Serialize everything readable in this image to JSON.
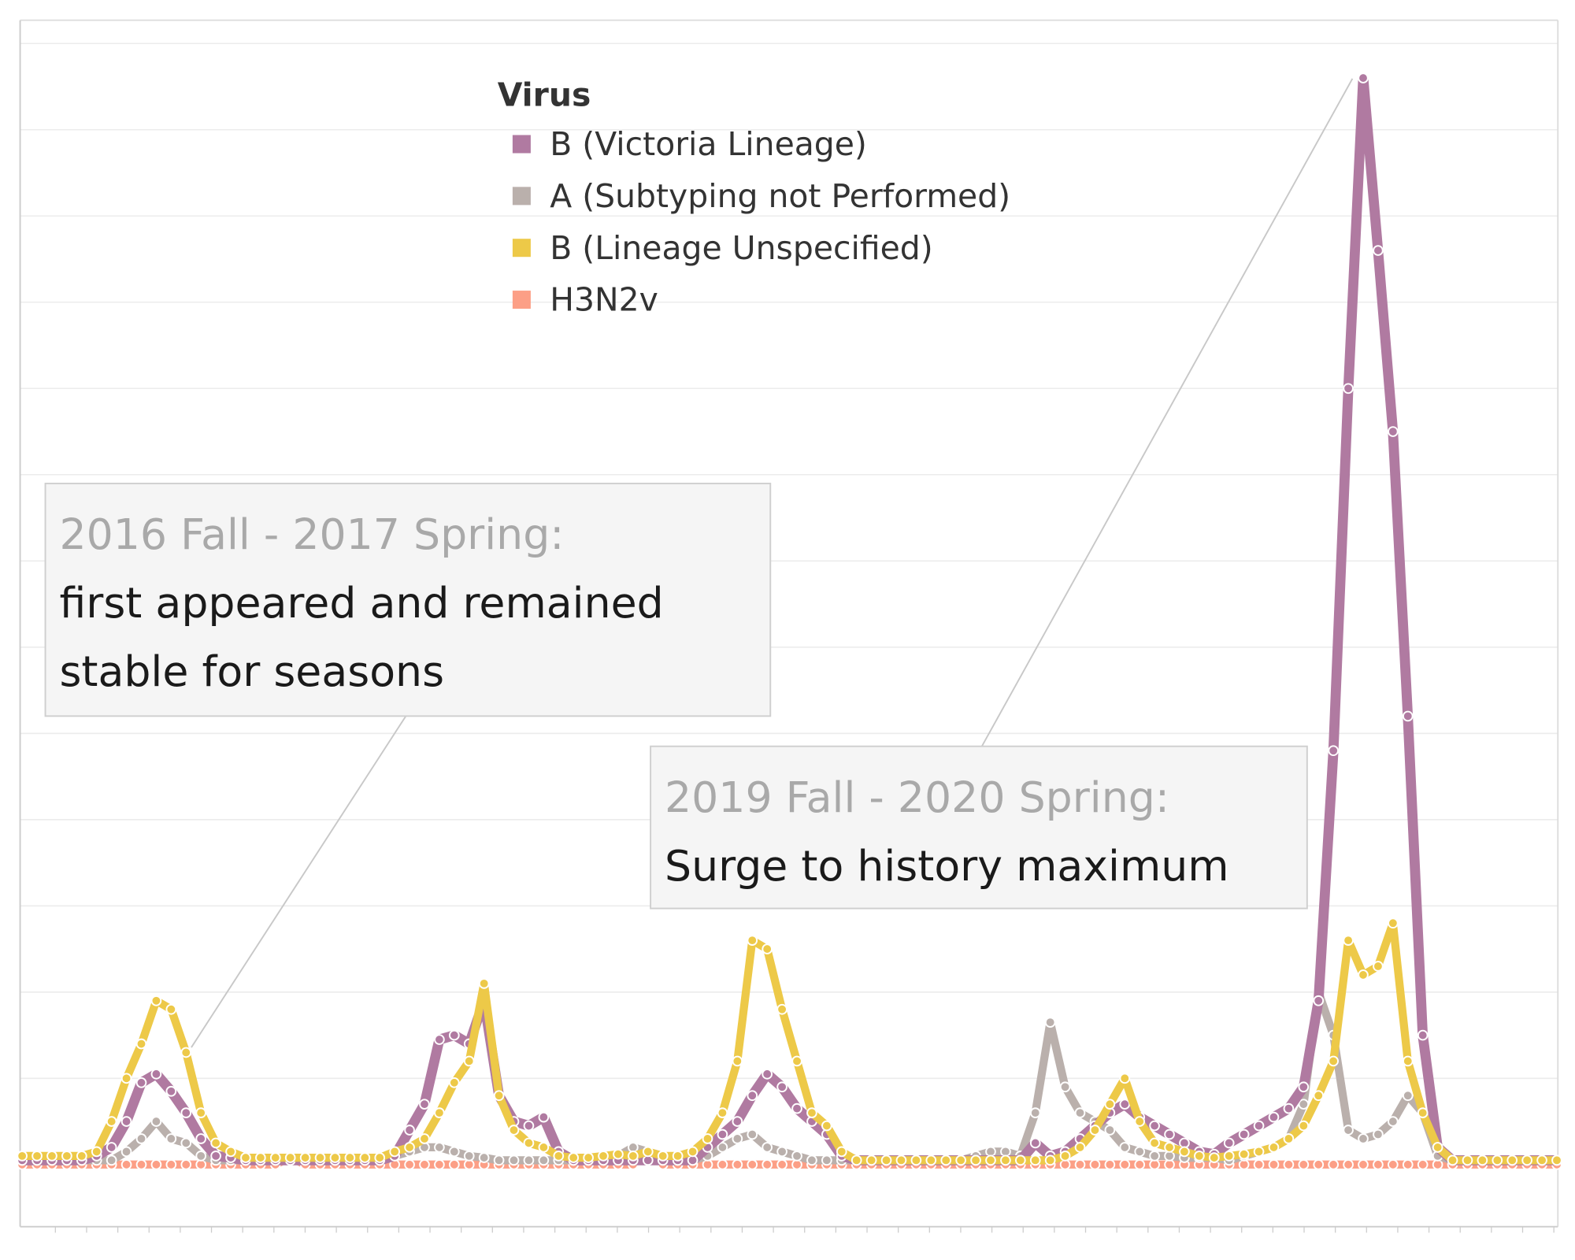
{
  "chart_data": {
    "type": "line",
    "legend_title": "Virus",
    "x": [
      0,
      1,
      2,
      3,
      4,
      5,
      6,
      7,
      8,
      9,
      10,
      11,
      12,
      13,
      14,
      15,
      16,
      17,
      18,
      19,
      20,
      21,
      22,
      23,
      24,
      25,
      26,
      27,
      28,
      29,
      30,
      31,
      32,
      33,
      34,
      35,
      36,
      37,
      38,
      39,
      40,
      41,
      42,
      43,
      44,
      45,
      46,
      47,
      48,
      49,
      50,
      51,
      52,
      53,
      54,
      55,
      56,
      57,
      58,
      59,
      60,
      61,
      62,
      63,
      64,
      65,
      66,
      67,
      68,
      69,
      70,
      71,
      72,
      73,
      74,
      75,
      76,
      77,
      78,
      79,
      80,
      81,
      82,
      83,
      84,
      85,
      86,
      87,
      88,
      89,
      90,
      91,
      92,
      93,
      94,
      95,
      96,
      97,
      98,
      99,
      100,
      101,
      102,
      103
    ],
    "series": [
      {
        "name": "B (Victoria Lineage)",
        "color": "#b07aa1",
        "values": [
          0.05,
          0.05,
          0.05,
          0.05,
          0.05,
          0.1,
          0.2,
          0.5,
          0.95,
          1.05,
          0.85,
          0.6,
          0.3,
          0.1,
          0.08,
          0.05,
          0.05,
          0.05,
          0.05,
          0.05,
          0.05,
          0.05,
          0.05,
          0.05,
          0.05,
          0.1,
          0.4,
          0.7,
          1.45,
          1.5,
          1.4,
          1.9,
          0.8,
          0.5,
          0.45,
          0.55,
          0.15,
          0.05,
          0.05,
          0.05,
          0.05,
          0.05,
          0.05,
          0.05,
          0.05,
          0.05,
          0.2,
          0.35,
          0.5,
          0.8,
          1.05,
          0.9,
          0.65,
          0.5,
          0.35,
          0.1,
          0.05,
          0.05,
          0.05,
          0.05,
          0.05,
          0.05,
          0.05,
          0.05,
          0.05,
          0.05,
          0.05,
          0.05,
          0.25,
          0.1,
          0.15,
          0.3,
          0.45,
          0.6,
          0.7,
          0.55,
          0.45,
          0.35,
          0.25,
          0.15,
          0.12,
          0.25,
          0.35,
          0.45,
          0.55,
          0.65,
          0.9,
          1.9,
          4.8,
          9.0,
          12.6,
          10.6,
          8.5,
          5.2,
          1.5,
          0.2,
          0.05,
          0.05,
          0.05,
          0.05,
          0.05,
          0.05,
          0.05,
          0.05
        ]
      },
      {
        "name": "A (Subtyping not Performed)",
        "color": "#bab0ac",
        "values": [
          0.05,
          0.05,
          0.05,
          0.05,
          0.05,
          0.05,
          0.05,
          0.15,
          0.3,
          0.5,
          0.3,
          0.25,
          0.1,
          0.05,
          0.05,
          0.05,
          0.05,
          0.05,
          0.05,
          0.05,
          0.05,
          0.05,
          0.05,
          0.05,
          0.05,
          0.1,
          0.15,
          0.2,
          0.2,
          0.15,
          0.1,
          0.08,
          0.05,
          0.05,
          0.05,
          0.05,
          0.05,
          0.05,
          0.05,
          0.05,
          0.1,
          0.2,
          0.15,
          0.1,
          0.05,
          0.05,
          0.1,
          0.2,
          0.3,
          0.35,
          0.2,
          0.15,
          0.1,
          0.05,
          0.05,
          0.05,
          0.05,
          0.05,
          0.05,
          0.05,
          0.05,
          0.05,
          0.05,
          0.05,
          0.1,
          0.15,
          0.15,
          0.1,
          0.6,
          1.65,
          0.9,
          0.6,
          0.5,
          0.4,
          0.2,
          0.15,
          0.1,
          0.1,
          0.08,
          0.08,
          0.08,
          0.05,
          0.1,
          0.15,
          0.2,
          0.3,
          0.7,
          2.0,
          1.5,
          0.4,
          0.3,
          0.35,
          0.5,
          0.8,
          0.6,
          0.1,
          0.05,
          0.05,
          0.05,
          0.05,
          0.05,
          0.05,
          0.05,
          0.05
        ]
      },
      {
        "name": "B (Lineage Unspecified)",
        "color": "#edc948",
        "values": [
          0.1,
          0.1,
          0.1,
          0.1,
          0.1,
          0.15,
          0.5,
          1.0,
          1.4,
          1.9,
          1.8,
          1.3,
          0.6,
          0.25,
          0.15,
          0.08,
          0.08,
          0.08,
          0.08,
          0.08,
          0.08,
          0.08,
          0.08,
          0.08,
          0.08,
          0.15,
          0.2,
          0.3,
          0.6,
          0.95,
          1.2,
          2.1,
          0.8,
          0.4,
          0.25,
          0.2,
          0.1,
          0.08,
          0.08,
          0.1,
          0.12,
          0.1,
          0.15,
          0.1,
          0.1,
          0.15,
          0.3,
          0.6,
          1.2,
          2.6,
          2.5,
          1.8,
          1.2,
          0.6,
          0.45,
          0.15,
          0.05,
          0.05,
          0.05,
          0.05,
          0.05,
          0.05,
          0.05,
          0.05,
          0.05,
          0.05,
          0.05,
          0.05,
          0.05,
          0.05,
          0.1,
          0.2,
          0.4,
          0.7,
          1.0,
          0.5,
          0.25,
          0.2,
          0.15,
          0.1,
          0.08,
          0.1,
          0.12,
          0.15,
          0.2,
          0.3,
          0.45,
          0.8,
          1.2,
          2.6,
          2.2,
          2.3,
          2.8,
          1.2,
          0.6,
          0.2,
          0.05,
          0.05,
          0.05,
          0.05,
          0.05,
          0.05,
          0.05,
          0.05
        ]
      },
      {
        "name": "H3N2v",
        "color": "#fc9f86",
        "values": [
          0,
          0,
          0,
          0,
          0,
          0,
          0,
          0,
          0,
          0,
          0,
          0,
          0,
          0,
          0,
          0,
          0,
          0,
          0.08,
          0,
          0,
          0,
          0,
          0,
          0,
          0,
          0,
          0,
          0,
          0,
          0,
          0,
          0,
          0,
          0,
          0,
          0,
          0,
          0,
          0,
          0,
          0,
          0.15,
          0,
          0,
          0,
          0,
          0,
          0,
          0,
          0,
          0,
          0,
          0,
          0,
          0,
          0,
          0,
          0,
          0,
          0,
          0,
          0,
          0,
          0,
          0,
          0,
          0,
          0,
          0,
          0,
          0,
          0,
          0,
          0,
          0,
          0,
          0,
          0,
          0,
          0,
          0,
          0,
          0,
          0,
          0,
          0,
          0,
          0,
          0,
          0,
          0,
          0,
          0,
          0,
          0,
          0,
          0,
          0,
          0,
          0,
          0,
          0,
          0
        ]
      }
    ],
    "ylim": [
      -0.72,
      13.27
    ],
    "yticks": [
      0,
      1,
      2,
      3,
      4,
      5,
      6,
      7,
      8,
      9,
      10,
      11,
      12,
      13
    ],
    "grid": true,
    "annotations": [
      {
        "title": "2016 Fall - 2017 Spring:",
        "text": [
          "first appeared and remained",
          "stable for seasons"
        ]
      },
      {
        "title": "2019 Fall - 2020 Spring:",
        "text": [
          "Surge to history maximum"
        ]
      }
    ]
  }
}
